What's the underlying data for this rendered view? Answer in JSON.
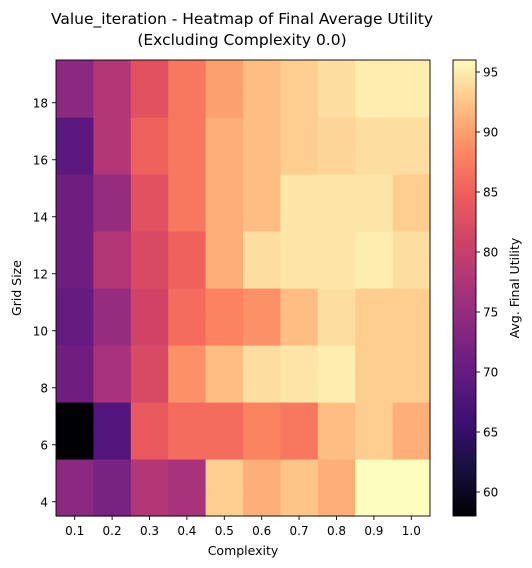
{
  "chart_data": {
    "type": "heatmap",
    "title_line1": "Value_iteration - Heatmap of Final Average Utility",
    "title_line2": "(Excluding Complexity 0.0)",
    "xlabel": "Complexity",
    "ylabel": "Grid Size",
    "colorbar_label": "Avg. Final Utility",
    "colormap": "magma",
    "x_categories": [
      "0.1",
      "0.2",
      "0.3",
      "0.4",
      "0.5",
      "0.6",
      "0.7",
      "0.8",
      "0.9",
      "1.0"
    ],
    "y_tick_labels": [
      "4",
      "6",
      "8",
      "10",
      "12",
      "14",
      "16",
      "18"
    ],
    "y_rows_bottom_to_top": [
      4,
      5,
      6,
      7,
      8,
      9,
      10,
      11,
      12,
      13,
      14,
      15,
      16,
      17,
      18,
      19
    ],
    "vmin": 58,
    "vmax": 96,
    "colorbar_ticks": [
      60,
      65,
      70,
      75,
      80,
      85,
      90,
      95
    ],
    "values_bottom_to_top": [
      [
        74,
        72,
        78,
        77,
        93,
        91,
        92.5,
        91,
        96,
        96
      ],
      [
        74,
        72,
        78,
        77,
        93,
        91,
        92.5,
        91,
        96,
        96
      ],
      [
        58,
        68,
        84,
        86,
        86,
        88,
        87,
        92,
        93,
        91
      ],
      [
        58,
        68,
        84,
        86,
        86,
        88,
        87,
        92,
        93,
        91
      ],
      [
        71,
        77,
        82,
        89,
        92,
        94,
        94.5,
        95,
        93,
        93
      ],
      [
        71,
        77,
        82,
        89,
        92,
        94,
        94.5,
        95,
        93,
        93
      ],
      [
        70,
        75,
        81,
        86,
        88,
        89,
        92,
        94,
        93,
        93
      ],
      [
        70,
        75,
        81,
        86,
        88,
        89,
        92,
        94,
        93,
        93
      ],
      [
        71,
        78,
        82,
        85,
        91,
        94,
        94.5,
        94.5,
        95,
        94
      ],
      [
        71,
        78,
        82,
        85,
        91,
        94,
        94.5,
        94.5,
        95,
        94
      ],
      [
        71,
        75,
        83,
        87,
        91,
        92,
        94.5,
        94.5,
        94.5,
        93
      ],
      [
        71,
        75,
        83,
        87,
        91,
        92,
        94.5,
        94.5,
        94.5,
        93
      ],
      [
        69,
        78,
        85,
        87,
        91,
        92,
        93,
        93.5,
        94,
        94
      ],
      [
        69,
        78,
        85,
        87,
        91,
        92,
        93,
        93.5,
        94,
        94
      ],
      [
        74,
        78,
        83,
        87,
        90,
        92,
        93,
        94,
        95,
        95
      ],
      [
        74,
        78,
        83,
        87,
        90,
        92,
        93,
        94,
        95,
        95
      ]
    ]
  }
}
